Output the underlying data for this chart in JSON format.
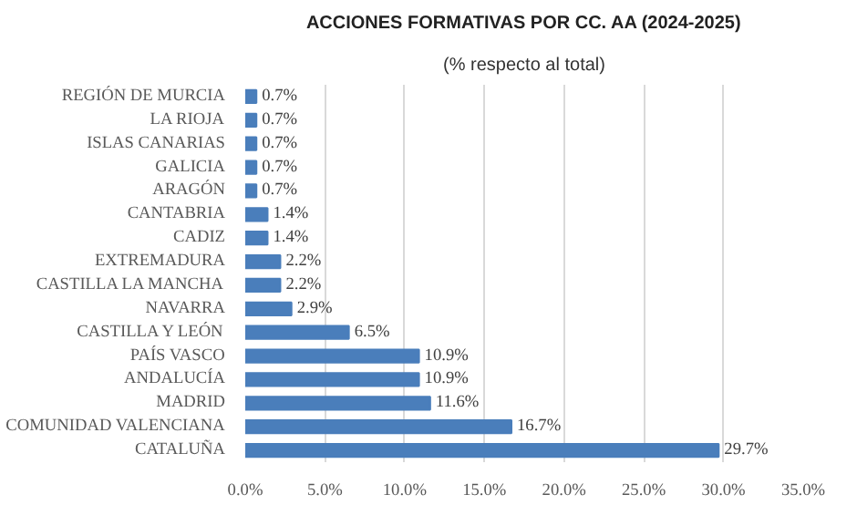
{
  "chart_data": {
    "type": "bar",
    "orientation": "horizontal",
    "title": "ACCIONES FORMATIVAS POR CC. AA (2024-2025)",
    "subtitle": "(% respecto al total)",
    "categories": [
      "REGIÓN DE MURCIA",
      "LA RIOJA",
      "ISLAS CANARIAS",
      "GALICIA",
      "ARAGÓN",
      "CANTABRIA",
      "CADIZ",
      "EXTREMADURA",
      "CASTILLA LA MANCHA",
      "NAVARRA",
      "CASTILLA Y LEÓN",
      "PAÍS VASCO",
      "ANDALUCÍA",
      "MADRID",
      "COMUNIDAD VALENCIANA",
      "CATALUÑA"
    ],
    "values": [
      0.7,
      0.7,
      0.7,
      0.7,
      0.7,
      1.4,
      1.4,
      2.2,
      2.2,
      2.9,
      6.5,
      10.9,
      10.9,
      11.6,
      16.7,
      29.7
    ],
    "value_labels": [
      "0.7%",
      "0.7%",
      "0.7%",
      "0.7%",
      "0.7%",
      "1.4%",
      "1.4%",
      "2.2%",
      "2.2%",
      "2.9%",
      "6.5%",
      "10.9%",
      "10.9%",
      "11.6%",
      "16.7%",
      "29.7%"
    ],
    "color": "#4a7ebb",
    "xlim": [
      0,
      35
    ],
    "xticks": [
      {
        "value": 0,
        "label": "0.0%"
      },
      {
        "value": 5,
        "label": "5.0%"
      },
      {
        "value": 10,
        "label": "10.0%"
      },
      {
        "value": 15,
        "label": "15.0%"
      },
      {
        "value": 20,
        "label": "20.0%"
      },
      {
        "value": 25,
        "label": "25.0%"
      },
      {
        "value": 30,
        "label": "30.0%"
      },
      {
        "value": 35,
        "label": "35.0%"
      }
    ],
    "grid": "x"
  }
}
